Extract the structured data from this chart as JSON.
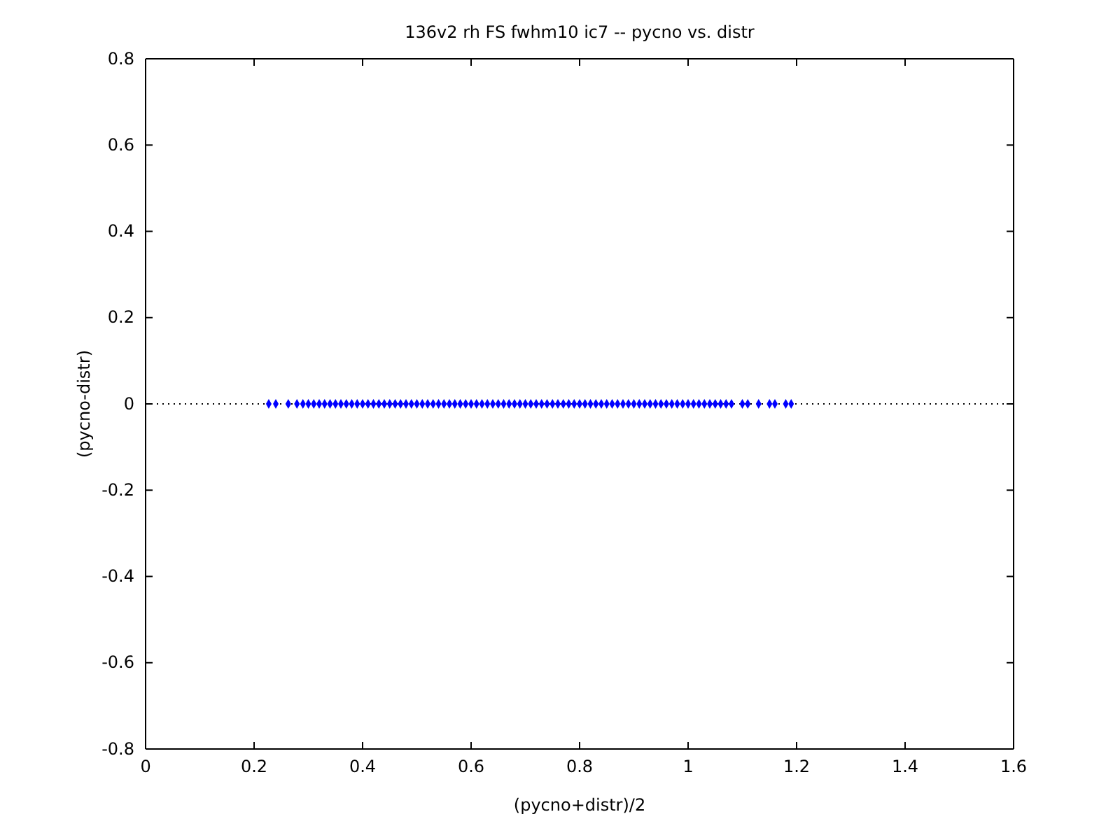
{
  "chart_data": {
    "type": "scatter",
    "title": "136v2 rh FS fwhm10 ic7 -- pycno vs. distr",
    "xlabel": "(pycno+distr)/2",
    "ylabel": "(pycno-distr)",
    "x": [
      0.227,
      0.24,
      0.263,
      0.279,
      0.29,
      0.3,
      0.31,
      0.32,
      0.33,
      0.34,
      0.35,
      0.36,
      0.37,
      0.38,
      0.39,
      0.4,
      0.41,
      0.42,
      0.43,
      0.44,
      0.45,
      0.46,
      0.47,
      0.48,
      0.49,
      0.5,
      0.51,
      0.52,
      0.53,
      0.54,
      0.55,
      0.56,
      0.57,
      0.58,
      0.59,
      0.6,
      0.61,
      0.62,
      0.63,
      0.64,
      0.65,
      0.66,
      0.67,
      0.68,
      0.69,
      0.7,
      0.71,
      0.72,
      0.73,
      0.74,
      0.75,
      0.76,
      0.77,
      0.78,
      0.79,
      0.8,
      0.81,
      0.82,
      0.83,
      0.84,
      0.85,
      0.86,
      0.87,
      0.88,
      0.89,
      0.9,
      0.91,
      0.92,
      0.93,
      0.94,
      0.95,
      0.96,
      0.97,
      0.98,
      0.99,
      1.0,
      1.01,
      1.02,
      1.03,
      1.04,
      1.05,
      1.06,
      1.07,
      1.08,
      1.1,
      1.11,
      1.13,
      1.15,
      1.16,
      1.18,
      1.19
    ],
    "values": [
      0,
      0,
      0,
      0,
      0,
      0,
      0,
      0,
      0,
      0,
      0,
      0,
      0,
      0,
      0,
      0,
      0,
      0,
      0,
      0,
      0,
      0,
      0,
      0,
      0,
      0,
      0,
      0,
      0,
      0,
      0,
      0,
      0,
      0,
      0,
      0,
      0,
      0,
      0,
      0,
      0,
      0,
      0,
      0,
      0,
      0,
      0,
      0,
      0,
      0,
      0,
      0,
      0,
      0,
      0,
      0,
      0,
      0,
      0,
      0,
      0,
      0,
      0,
      0,
      0,
      0,
      0,
      0,
      0,
      0,
      0,
      0,
      0,
      0,
      0,
      0,
      0,
      0,
      0,
      0,
      0,
      0,
      0,
      0,
      0,
      0,
      0,
      0,
      0,
      0,
      0
    ],
    "color": "#0000ff",
    "marker": "diamond",
    "xlim": [
      0,
      1.6
    ],
    "xticks": [
      0,
      0.2,
      0.4,
      0.6,
      0.8,
      1,
      1.2,
      1.4,
      1.6
    ],
    "ylim": [
      -0.8,
      0.8
    ],
    "yticks": [
      -0.8,
      -0.6,
      -0.4,
      -0.2,
      0,
      0.2,
      0.4,
      0.6,
      0.8
    ],
    "ref_lines": [
      {
        "axis": "y",
        "value": 0,
        "color": "#000000",
        "line_style": "dotted"
      }
    ]
  }
}
